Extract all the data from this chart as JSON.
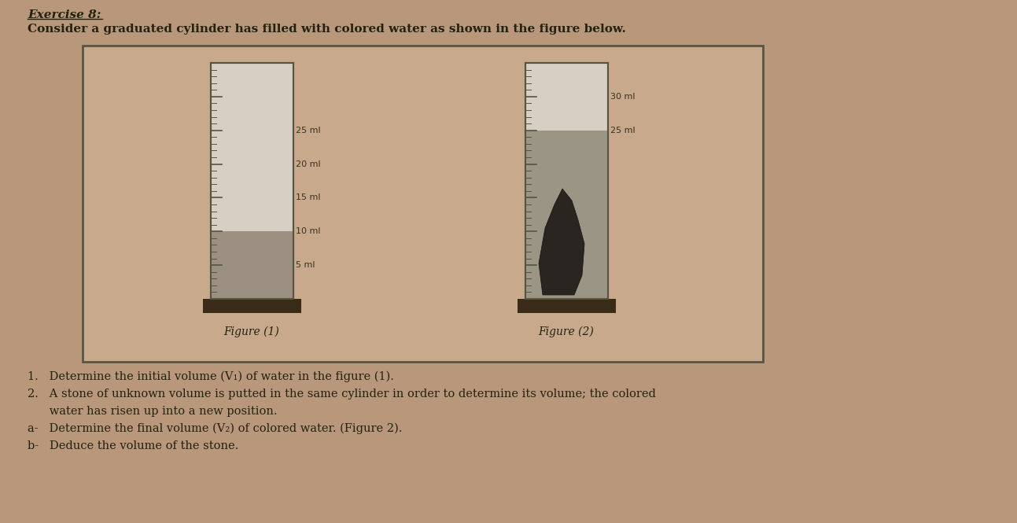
{
  "title_line1": "Exercise 8:",
  "title_line2": "Consider a graduated cylinder has filled with colored water as shown in the figure below.",
  "fig1_label": "Figure (1)",
  "fig2_label": "Figure (2)",
  "questions": [
    "1.   Determine the initial volume (V₁) of water in the figure (1).",
    "2.   A stone of unknown volume is putted in the same cylinder in order to determine its volume; the colored",
    "      water has risen up into a new position.",
    "a-   Determine the final volume (V₂) of colored water. (Figure 2).",
    "b-   Deduce the volume of the stone."
  ],
  "bg_color": "#b8977a",
  "box_bg": "#c9a98c",
  "cylinder_bg_empty": "#d8cfc4",
  "cylinder_bg_water1": "#9a8f80",
  "cylinder_bg_water2": "#9a9585",
  "base_color": "#3a2a18",
  "tick_color": "#555544",
  "label_color": "#333322",
  "border_color": "#555544",
  "tick_labels_fig1": [
    5,
    10,
    15,
    20,
    25
  ],
  "tick_labels_fig2": [
    25,
    30
  ],
  "water_level_fig1": 10,
  "water_level_fig2": 25,
  "max_volume": 35,
  "stone_color": "#2a2520"
}
